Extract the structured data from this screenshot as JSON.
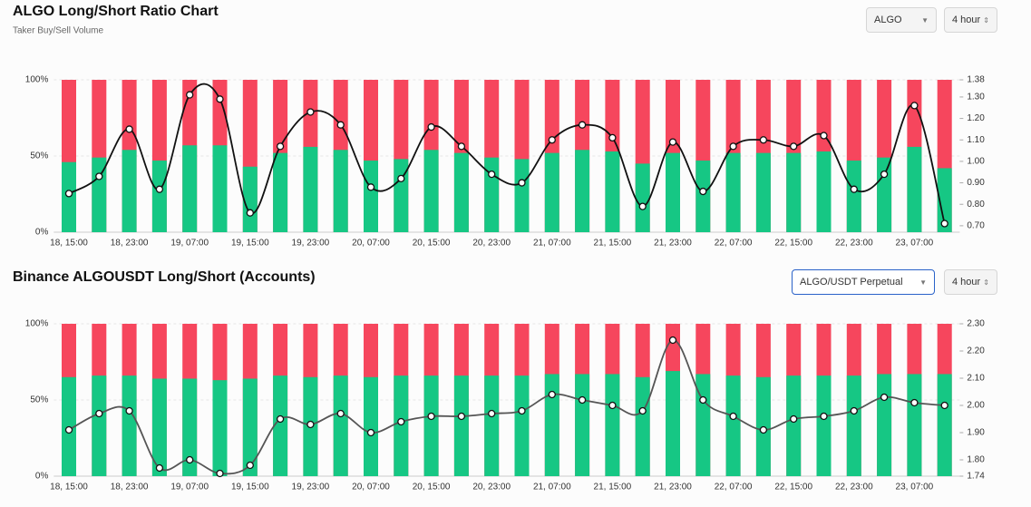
{
  "chart_data": [
    {
      "type": "combo",
      "title": "ALGO Long/Short Ratio Chart",
      "subtitle": "Taker Buy/Sell Volume",
      "selectors": [
        "ALGO",
        "4 hour"
      ],
      "categories": [
        "18, 15:00",
        null,
        "18, 23:00",
        null,
        "19, 07:00",
        null,
        "19, 15:00",
        null,
        "19, 23:00",
        null,
        "20, 07:00",
        null,
        "20, 15:00",
        null,
        "20, 23:00",
        null,
        "21, 07:00",
        null,
        "21, 15:00",
        null,
        "21, 23:00",
        null,
        "22, 07:00",
        null,
        "22, 15:00",
        null,
        "22, 23:00",
        null,
        "23, 07:00",
        null
      ],
      "series": [
        {
          "type": "bar",
          "axis": "y",
          "color": "#16c784",
          "background": "#f6465d",
          "values": [
            46,
            49,
            54,
            47,
            57,
            57,
            43,
            52,
            56,
            54,
            47,
            48,
            54,
            52,
            49,
            48,
            52,
            54,
            53,
            45,
            52,
            47,
            52,
            52,
            52,
            53,
            47,
            49,
            56,
            42
          ]
        },
        {
          "type": "line",
          "axis": "y2",
          "color": "#111111",
          "values": [
            0.85,
            0.93,
            1.15,
            0.87,
            1.31,
            1.29,
            0.76,
            1.07,
            1.23,
            1.17,
            0.88,
            0.92,
            1.16,
            1.07,
            0.94,
            0.9,
            1.1,
            1.17,
            1.11,
            0.79,
            1.09,
            0.86,
            1.07,
            1.1,
            1.07,
            1.12,
            0.87,
            0.94,
            1.26,
            0.71
          ]
        }
      ],
      "ylim": [
        0,
        100
      ],
      "yticks": [
        {
          "value": 0,
          "label": "0%"
        },
        {
          "value": 50,
          "label": "50%"
        },
        {
          "value": 100,
          "label": "100%"
        }
      ],
      "y2lim": [
        0.67,
        1.38
      ],
      "y2ticks": [
        {
          "value": 0.7,
          "label": "0.70"
        },
        {
          "value": 0.8,
          "label": "0.80"
        },
        {
          "value": 0.9,
          "label": "0.90"
        },
        {
          "value": 1,
          "label": "1.00"
        },
        {
          "value": 1.1,
          "label": "1.10"
        },
        {
          "value": 1.2,
          "label": "1.20"
        },
        {
          "value": 1.3,
          "label": "1.30"
        },
        1.38
      ],
      "grid": true
    },
    {
      "type": "combo",
      "title": "Binance ALGOUSDT Long/Short (Accounts)",
      "selectors": [
        "ALGO/USDT Perpetual",
        "4 hour"
      ],
      "categories": [
        "18, 15:00",
        null,
        "18, 23:00",
        null,
        "19, 07:00",
        null,
        "19, 15:00",
        null,
        "19, 23:00",
        null,
        "20, 07:00",
        null,
        "20, 15:00",
        null,
        "20, 23:00",
        null,
        "21, 07:00",
        null,
        "21, 15:00",
        null,
        "21, 23:00",
        null,
        "22, 07:00",
        null,
        "22, 15:00",
        null,
        "22, 23:00",
        null,
        "23, 07:00",
        null
      ],
      "series": [
        {
          "type": "bar",
          "axis": "y",
          "color": "#16c784",
          "background": "#f6465d",
          "values": [
            65,
            66,
            66,
            64,
            64,
            63,
            64,
            66,
            65,
            66,
            65,
            66,
            66,
            66,
            66,
            66,
            67,
            67,
            67,
            65,
            69,
            67,
            66,
            65,
            66,
            66,
            66,
            67,
            67,
            67
          ]
        },
        {
          "type": "line",
          "axis": "y2",
          "color": "#555555",
          "values": [
            1.91,
            1.97,
            1.98,
            1.77,
            1.8,
            1.75,
            1.78,
            1.95,
            1.93,
            1.97,
            1.9,
            1.94,
            1.96,
            1.96,
            1.97,
            1.98,
            2.04,
            2.02,
            2.0,
            1.98,
            2.24,
            2.02,
            1.96,
            1.91,
            1.95,
            1.96,
            1.98,
            2.03,
            2.01,
            2.0
          ]
        }
      ],
      "ylim": [
        0,
        100
      ],
      "yticks": [
        {
          "value": 0,
          "label": "0%"
        },
        {
          "value": 50,
          "label": "50%"
        },
        {
          "value": 100,
          "label": "100%"
        }
      ],
      "y2lim": [
        1.74,
        2.3
      ],
      "y2ticks": [
        1.74,
        {
          "value": 1.8,
          "label": "1.80"
        },
        {
          "value": 1.9,
          "label": "1.90"
        },
        {
          "value": 2,
          "label": "2.00"
        },
        {
          "value": 2.1,
          "label": "2.10"
        },
        {
          "value": 2.2,
          "label": "2.20"
        },
        {
          "value": 2.3,
          "label": "2.30"
        }
      ],
      "grid": true
    }
  ]
}
